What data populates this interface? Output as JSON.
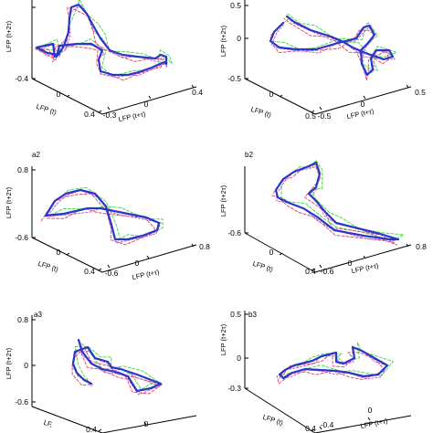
{
  "colors": {
    "blue": "#2638c8",
    "green": "#55d455",
    "red": "#e0506a",
    "magenta": "#c85ac8"
  },
  "chart_data": [
    {
      "type": "line",
      "panel_label": "",
      "zlabel": "LFP (t+2τ)",
      "xlabel": "LFP (t)",
      "ylabel": "LFP (t+τ)",
      "z_ticks": [
        "",
        "-0.4"
      ],
      "x_ticks": [
        "0",
        "0.4"
      ],
      "y_ticks": [
        "-0.3",
        "0",
        "0.4"
      ],
      "plot": "a1"
    },
    {
      "type": "line",
      "panel_label": "",
      "zlabel": "LFP (t+2τ)",
      "xlabel": "LFP (t)",
      "ylabel": "LFP (t+τ)",
      "z_ticks": [
        "0.5",
        "0",
        "-0.5"
      ],
      "x_ticks": [
        "0",
        "0.5"
      ],
      "y_ticks": [
        "-0.5",
        "0",
        "0.5"
      ],
      "plot": "b1"
    },
    {
      "type": "line",
      "panel_label": "a2",
      "zlabel": "LFP (t+2τ)",
      "xlabel": "LFP (t)",
      "ylabel": "LFP (t+τ)",
      "z_ticks": [
        "0.8",
        "-0.6"
      ],
      "x_ticks": [
        "0",
        "0.4"
      ],
      "y_ticks": [
        "-0.6",
        "0",
        "0.8"
      ],
      "plot": "a2"
    },
    {
      "type": "line",
      "panel_label": "b2",
      "zlabel": "LFP (t+2τ)",
      "xlabel": "LFP (t)",
      "ylabel": "LFP (t+τ)",
      "z_ticks": [
        "-0.6"
      ],
      "x_ticks": [
        "0",
        "0.4"
      ],
      "y_ticks": [
        "-0.6",
        "0",
        "0.8"
      ],
      "plot": "b2"
    },
    {
      "type": "line",
      "panel_label": "a3",
      "zlabel": "LFP (t+2τ)",
      "xlabel": "LF,",
      "ylabel": "",
      "z_ticks": [
        "0.8",
        "0",
        "-0.6"
      ],
      "x_ticks": [
        "0.4"
      ],
      "y_ticks": [
        "0"
      ],
      "plot": "a3"
    },
    {
      "type": "line",
      "panel_label": "b3",
      "zlabel": "LFP (t+2τ)",
      "xlabel": "LFP (t)",
      "ylabel": "LFP (t+τ)",
      "z_ticks": [
        "0.5",
        "0",
        "-0.3"
      ],
      "x_ticks": [
        "0.4"
      ],
      "y_ticks": [
        "-0.4",
        "0"
      ],
      "plot": "b3"
    }
  ]
}
